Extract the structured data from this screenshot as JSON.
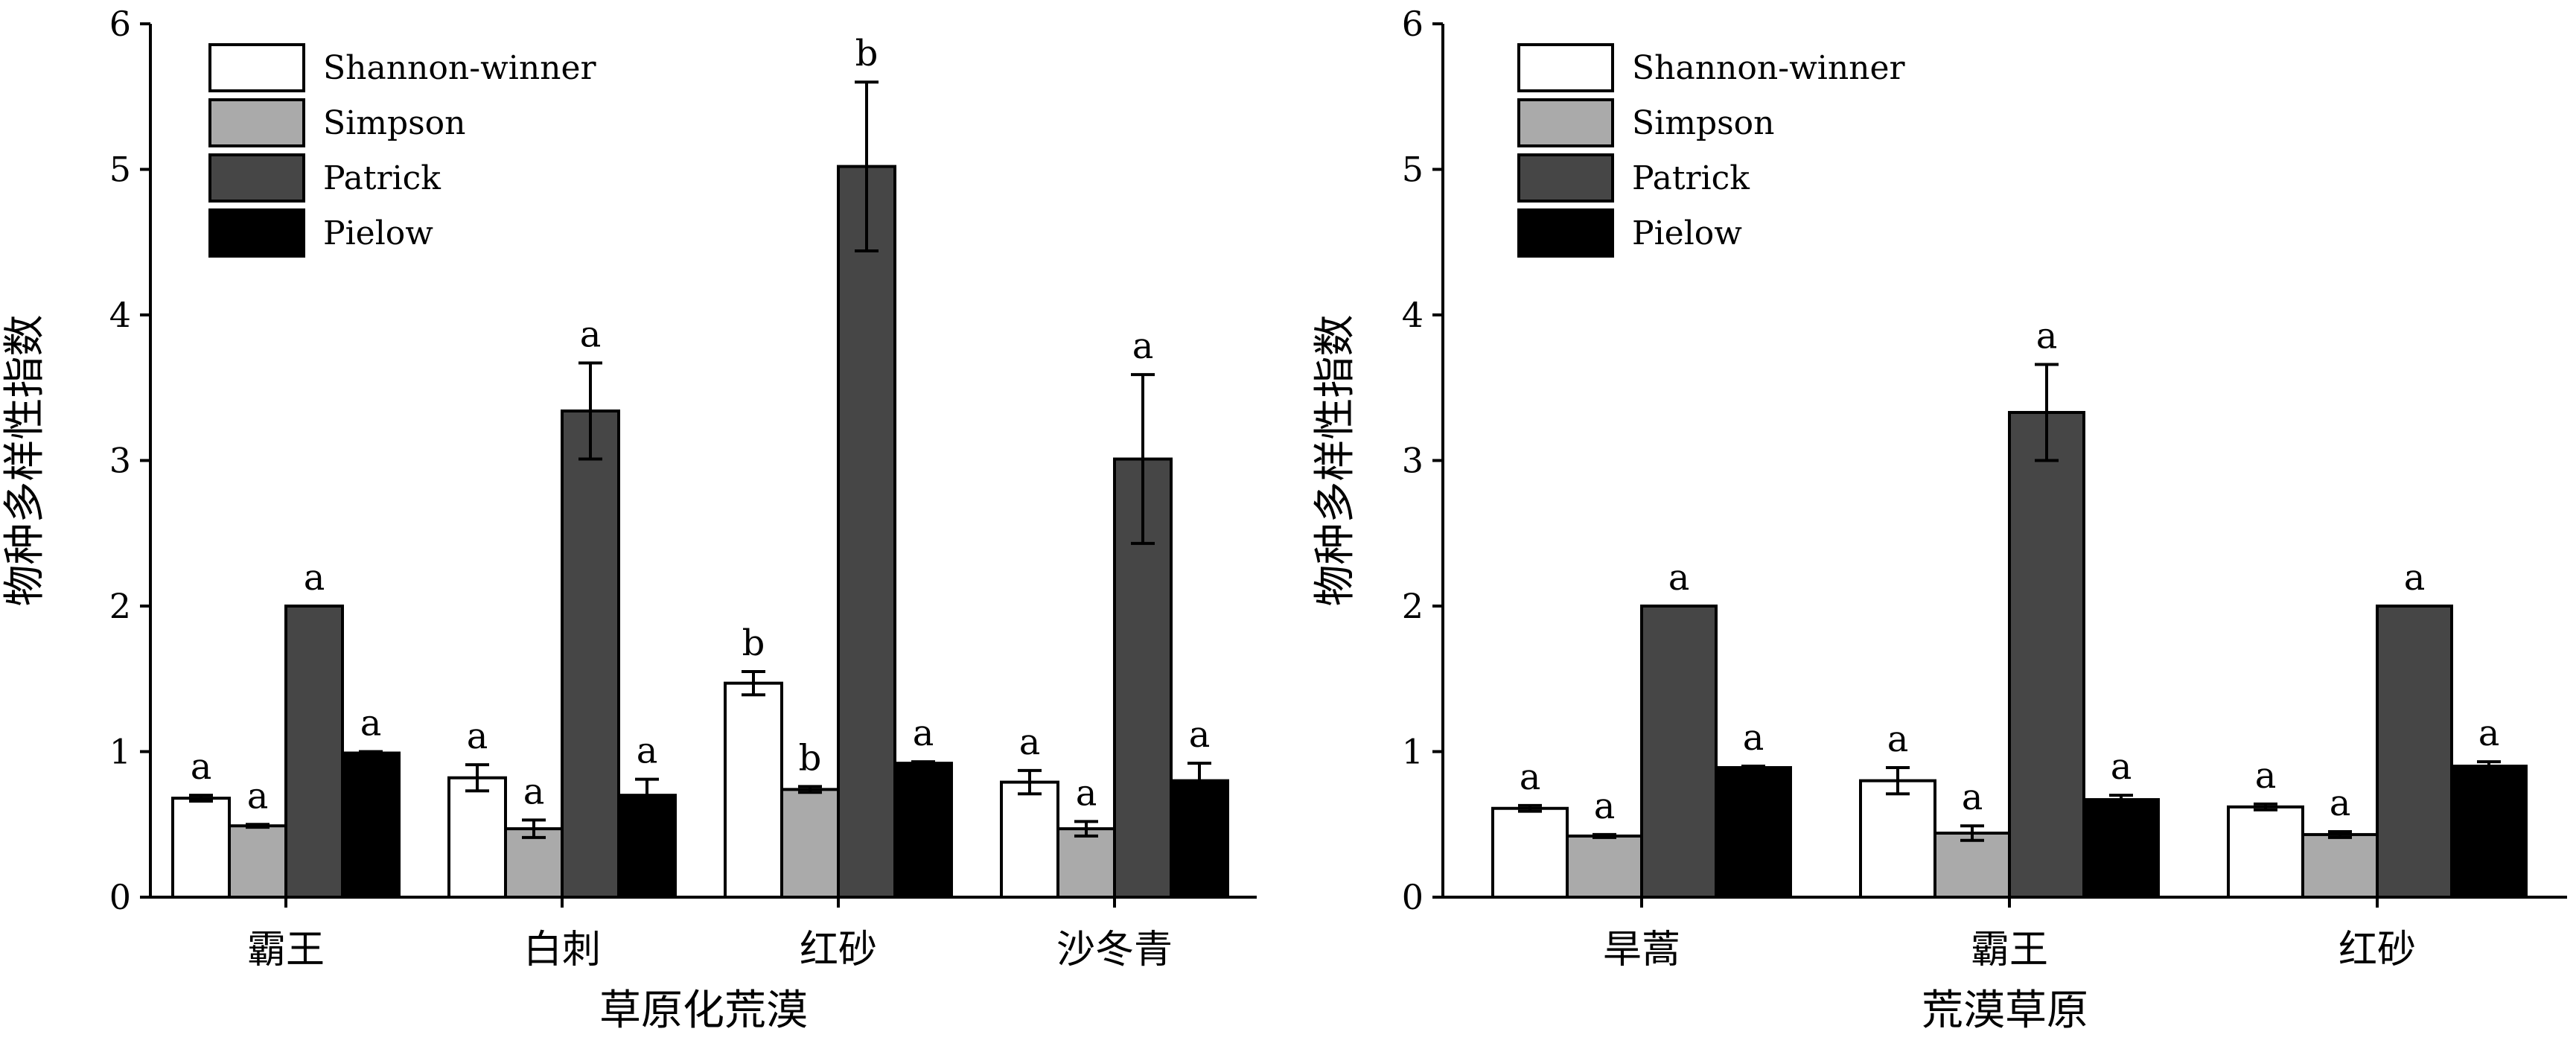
{
  "chart_data": [
    {
      "type": "bar",
      "xlabel": "草原化荒漠",
      "ylabel": "物种多样性指数",
      "ylim": [
        0,
        6
      ],
      "yticks": [
        "0",
        "1",
        "2",
        "3",
        "4",
        "5",
        "6"
      ],
      "legend_position": "top-left",
      "categories": [
        "霸王",
        "白刺",
        "红砂",
        "沙冬青"
      ],
      "series": [
        {
          "name": "Shannon-winner",
          "color": "#ffffff",
          "values": [
            0.68,
            0.82,
            1.47,
            0.79
          ],
          "errors": [
            0.02,
            0.09,
            0.08,
            0.08
          ],
          "letters": [
            "a",
            "a",
            "b",
            "a"
          ]
        },
        {
          "name": "Simpson",
          "color": "#aaaaaa",
          "values": [
            0.49,
            0.47,
            0.74,
            0.47
          ],
          "errors": [
            0.01,
            0.06,
            0.02,
            0.05
          ],
          "letters": [
            "a",
            "a",
            "b",
            "a"
          ]
        },
        {
          "name": "Patrick",
          "color": "#464646",
          "values": [
            2.0,
            3.34,
            5.02,
            3.01
          ],
          "errors": [
            0.0,
            0.33,
            0.58,
            0.58
          ],
          "letters": [
            "a",
            "a",
            "b",
            "a"
          ]
        },
        {
          "name": "Pielow",
          "color": "#000000",
          "values": [
            0.99,
            0.7,
            0.92,
            0.8
          ],
          "errors": [
            0.01,
            0.11,
            0.01,
            0.12
          ],
          "letters": [
            "a",
            "a",
            "a",
            "a"
          ]
        }
      ]
    },
    {
      "type": "bar",
      "xlabel": "荒漠草原",
      "ylabel": "物种多样性指数",
      "ylim": [
        0,
        6
      ],
      "yticks": [
        "0",
        "1",
        "2",
        "3",
        "4",
        "5",
        "6"
      ],
      "legend_position": "top-left",
      "categories": [
        "旱蒿",
        "霸王",
        "红砂"
      ],
      "series": [
        {
          "name": "Shannon-winner",
          "color": "#ffffff",
          "values": [
            0.61,
            0.8,
            0.62
          ],
          "errors": [
            0.02,
            0.09,
            0.02
          ],
          "letters": [
            "a",
            "a",
            "a"
          ]
        },
        {
          "name": "Simpson",
          "color": "#aaaaaa",
          "values": [
            0.42,
            0.44,
            0.43
          ],
          "errors": [
            0.01,
            0.05,
            0.02
          ],
          "letters": [
            "a",
            "a",
            "a"
          ]
        },
        {
          "name": "Patrick",
          "color": "#464646",
          "values": [
            2.0,
            3.33,
            2.0
          ],
          "errors": [
            0.0,
            0.33,
            0.0
          ],
          "letters": [
            "a",
            "a",
            "a"
          ]
        },
        {
          "name": "Pielow",
          "color": "#000000",
          "values": [
            0.89,
            0.67,
            0.9
          ],
          "errors": [
            0.01,
            0.03,
            0.03
          ],
          "letters": [
            "a",
            "a",
            "a"
          ]
        }
      ]
    }
  ]
}
